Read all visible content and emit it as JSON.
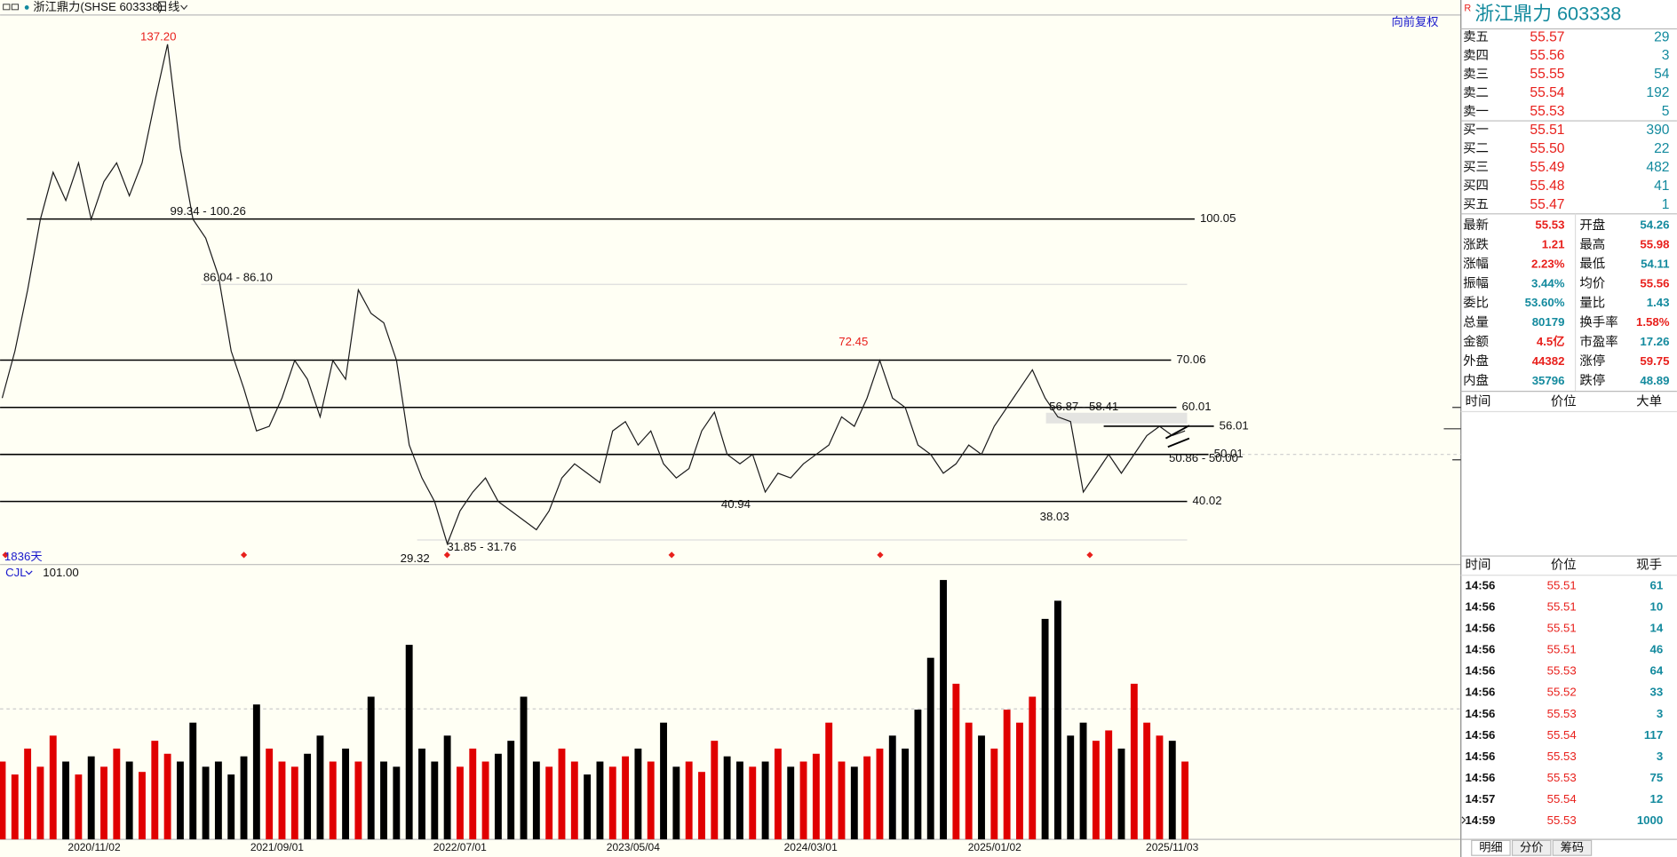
{
  "toolbar": {
    "symbol": "浙江鼎力(SHSE 603338)",
    "period": "日线",
    "adjust": "向前复权"
  },
  "chart_data": [
    {
      "type": "line",
      "color": "#1a1a1a",
      "ylim": [
        26.6,
        143.2
      ],
      "values": [
        62,
        72,
        85,
        100,
        110,
        104,
        112,
        100,
        108,
        112,
        105,
        112,
        125,
        137.2,
        115,
        100,
        96,
        88,
        72,
        64,
        55,
        56,
        62,
        70,
        66,
        58,
        70,
        66,
        85,
        80,
        78,
        70,
        52,
        45,
        40,
        31,
        38,
        42,
        45,
        40,
        38,
        36,
        34,
        38,
        45,
        48,
        46,
        44,
        55,
        57,
        52,
        55,
        48,
        45,
        47,
        55,
        59,
        50,
        48,
        50,
        42,
        46,
        45,
        48,
        50,
        52,
        58,
        56,
        62,
        70,
        62,
        60,
        52,
        50,
        46,
        48,
        52,
        50,
        56,
        60,
        64,
        68,
        62,
        58,
        57,
        42,
        46,
        50,
        46,
        50,
        54,
        56,
        54,
        55
      ],
      "levels": [
        100.05,
        70.06,
        60.01,
        56.01,
        50.01,
        40.02
      ],
      "annotations": [
        "137.20",
        "99.34 - 100.26",
        "86.04 - 86.10",
        "72.45",
        "56.87 - 58.41",
        "50.86 - 50.00",
        "40.94",
        "38.03",
        "29.32",
        "31.85 - 31.76"
      ],
      "span_label": "1836天",
      "xtick_labels": [
        "2020/11/02",
        "2021/09/01",
        "2022/07/01",
        "2023/05/04",
        "2024/03/01",
        "2025/01/02",
        "2025/11/03"
      ]
    },
    {
      "type": "bar",
      "title": "CJL",
      "value_label": "101.00",
      "ylim": [
        0,
        101
      ],
      "up_color": "#e00000",
      "down_color": "#000000",
      "values": [
        30,
        25,
        35,
        28,
        40,
        30,
        25,
        32,
        28,
        35,
        30,
        26,
        38,
        33,
        30,
        45,
        28,
        30,
        25,
        32,
        52,
        35,
        30,
        28,
        33,
        40,
        30,
        35,
        30,
        55,
        30,
        28,
        75,
        35,
        30,
        40,
        28,
        35,
        30,
        33,
        38,
        55,
        30,
        28,
        35,
        30,
        25,
        30,
        28,
        32,
        35,
        30,
        45,
        28,
        30,
        26,
        38,
        32,
        30,
        28,
        30,
        35,
        28,
        30,
        33,
        45,
        30,
        28,
        32,
        35,
        40,
        35,
        50,
        70,
        100,
        60,
        45,
        40,
        35,
        50,
        45,
        55,
        85,
        92,
        40,
        45,
        38,
        42,
        35,
        60,
        45,
        40,
        38,
        30
      ]
    }
  ],
  "quote": {
    "badge": "R",
    "title": "浙江鼎力  603338",
    "price_color": "#e8201c",
    "volume_color": "#138a9e",
    "sells": [
      {
        "label": "卖五",
        "price": "55.57",
        "volume": "29"
      },
      {
        "label": "卖四",
        "price": "55.56",
        "volume": "3"
      },
      {
        "label": "卖三",
        "price": "55.55",
        "volume": "54"
      },
      {
        "label": "卖二",
        "price": "55.54",
        "volume": "192"
      },
      {
        "label": "卖一",
        "price": "55.53",
        "volume": "5"
      }
    ],
    "buys": [
      {
        "label": "买一",
        "price": "55.51",
        "volume": "390"
      },
      {
        "label": "买二",
        "price": "55.50",
        "volume": "22"
      },
      {
        "label": "买三",
        "price": "55.49",
        "volume": "482"
      },
      {
        "label": "买四",
        "price": "55.48",
        "volume": "41"
      },
      {
        "label": "买五",
        "price": "55.47",
        "volume": "1"
      }
    ],
    "stats_left": [
      {
        "label": "最新",
        "value": "55.53",
        "color": "#e8201c"
      },
      {
        "label": "涨跌",
        "value": "1.21",
        "color": "#e8201c"
      },
      {
        "label": "涨幅",
        "value": "2.23%",
        "color": "#e8201c"
      },
      {
        "label": "振幅",
        "value": "3.44%",
        "color": "#138a9e"
      },
      {
        "label": "委比",
        "value": "53.60%",
        "color": "#138a9e"
      },
      {
        "label": "总量",
        "value": "80179",
        "color": "#138a9e"
      },
      {
        "label": "金额",
        "value": "4.5亿",
        "color": "#e8201c"
      },
      {
        "label": "外盘",
        "value": "44382",
        "color": "#e8201c"
      },
      {
        "label": "内盘",
        "value": "35796",
        "color": "#138a9e"
      }
    ],
    "stats_right": [
      {
        "label": "开盘",
        "value": "54.26",
        "color": "#138a9e"
      },
      {
        "label": "最高",
        "value": "55.98",
        "color": "#e8201c"
      },
      {
        "label": "最低",
        "value": "54.11",
        "color": "#138a9e"
      },
      {
        "label": "均价",
        "value": "55.56",
        "color": "#e8201c"
      },
      {
        "label": "量比",
        "value": "1.43",
        "color": "#138a9e"
      },
      {
        "label": "换手率",
        "value": "1.58%",
        "color": "#e8201c"
      },
      {
        "label": "市盈率",
        "value": "17.26",
        "color": "#138a9e"
      },
      {
        "label": "涨停",
        "value": "59.75",
        "color": "#e8201c"
      },
      {
        "label": "跌停",
        "value": "48.89",
        "color": "#138a9e"
      }
    ],
    "big_orders_header": [
      "时间",
      "价位",
      "大单"
    ],
    "trades_header": [
      "时间",
      "价位",
      "现手"
    ],
    "trades": [
      [
        "14:56",
        "55.51",
        "61"
      ],
      [
        "14:56",
        "55.51",
        "10"
      ],
      [
        "14:56",
        "55.51",
        "14"
      ],
      [
        "14:56",
        "55.51",
        "46"
      ],
      [
        "14:56",
        "55.53",
        "64"
      ],
      [
        "14:56",
        "55.52",
        "33"
      ],
      [
        "14:56",
        "55.53",
        "3"
      ],
      [
        "14:56",
        "55.54",
        "117"
      ],
      [
        "14:56",
        "55.53",
        "3"
      ],
      [
        "14:56",
        "55.53",
        "75"
      ],
      [
        "14:57",
        "55.54",
        "12"
      ],
      [
        "14:59",
        "55.53",
        "1000"
      ]
    ],
    "tabs": [
      "明细",
      "分价",
      "筹码"
    ]
  }
}
